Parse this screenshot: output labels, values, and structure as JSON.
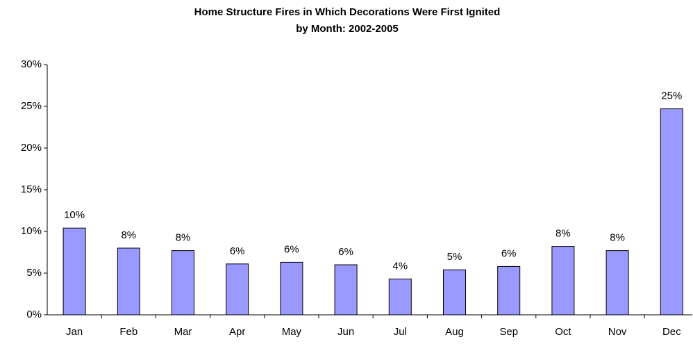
{
  "chart_data": {
    "type": "bar",
    "title": [
      "Home Structure Fires in Which Decorations Were First Ignited",
      "by Month:  2002-2005"
    ],
    "categories": [
      "Jan",
      "Feb",
      "Mar",
      "Apr",
      "May",
      "Jun",
      "Jul",
      "Aug",
      "Sep",
      "Oct",
      "Nov",
      "Dec"
    ],
    "values": [
      10.4,
      8.0,
      7.7,
      6.1,
      6.3,
      6.0,
      4.3,
      5.4,
      5.8,
      8.2,
      7.7,
      24.7
    ],
    "value_labels": [
      "10%",
      "8%",
      "8%",
      "6%",
      "6%",
      "6%",
      "4%",
      "5%",
      "6%",
      "8%",
      "8%",
      "25%"
    ],
    "color": "#9999ff",
    "ylim": [
      0,
      30
    ],
    "yticks": [
      {
        "value": 0,
        "label": "0%"
      },
      {
        "value": 5,
        "label": "5%"
      },
      {
        "value": 10,
        "label": "10%"
      },
      {
        "value": 15,
        "label": "15%"
      },
      {
        "value": 20,
        "label": "20%"
      },
      {
        "value": 25,
        "label": "25%"
      },
      {
        "value": 30,
        "label": "30%"
      }
    ],
    "grid": false
  }
}
